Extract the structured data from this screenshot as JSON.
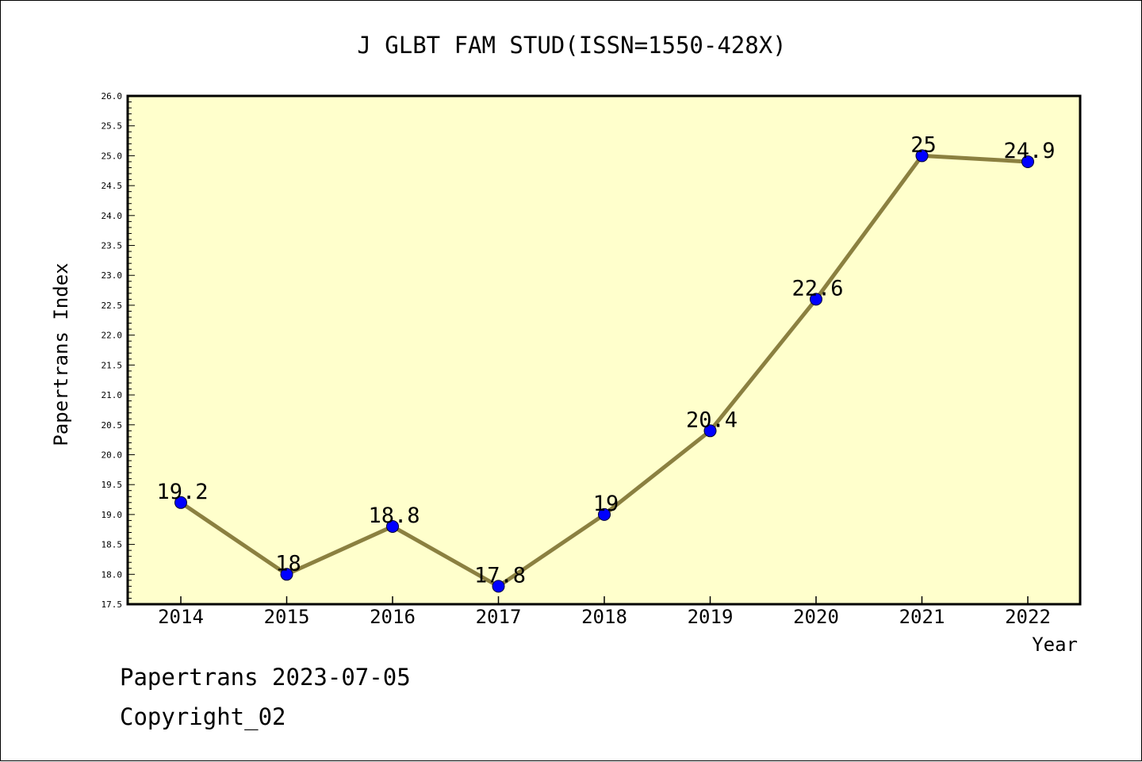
{
  "chart_data": {
    "type": "line",
    "title": "J GLBT FAM STUD(ISSN=1550-428X)",
    "xlabel": "Year",
    "ylabel": "Papertrans Index",
    "x": [
      "2014",
      "2015",
      "2016",
      "2017",
      "2018",
      "2019",
      "2020",
      "2021",
      "2022"
    ],
    "series": [
      {
        "values": [
          19.2,
          18.0,
          18.8,
          17.8,
          19.0,
          20.4,
          22.6,
          25.0,
          24.9
        ],
        "labels": [
          "19.2",
          "18",
          "18.8",
          "17.8",
          "19",
          "20.4",
          "22.6",
          "25",
          "24.9"
        ]
      }
    ],
    "ylim": [
      17.5,
      26.0
    ],
    "yticks": [
      "17.5",
      "18.0",
      "18.5",
      "19.0",
      "19.5",
      "20.0",
      "20.5",
      "21.0",
      "21.5",
      "22.0",
      "22.5",
      "23.0",
      "23.5",
      "24.0",
      "24.5",
      "25.0",
      "25.5",
      "26.0"
    ],
    "grid": false,
    "colors": {
      "plot_background": "#ffffcc",
      "line": "#8b8040",
      "marker": "#0000ff"
    }
  },
  "footer": {
    "line1": "Papertrans 2023-07-05",
    "line2": "Copyright_02"
  }
}
